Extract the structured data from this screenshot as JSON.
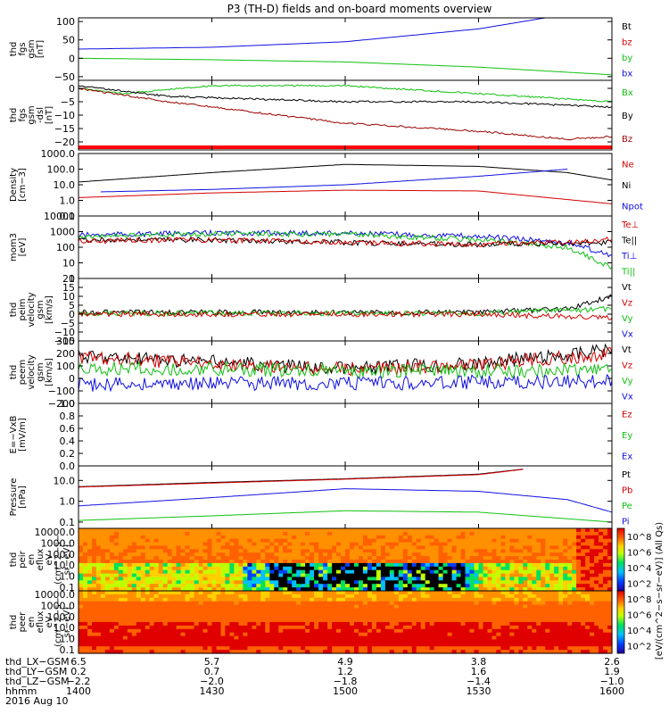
{
  "title": "P3 (TH-D) fields and on-board moments overview",
  "colors": {
    "black": "#000000",
    "red": "#d40000",
    "green": "#10c010",
    "blue": "#1010e0",
    "darkred": "#9b0000"
  },
  "chart_data": {
    "type": "line",
    "x_range_hhmm": [
      1400,
      1600
    ],
    "panels": [
      {
        "id": "fgs_gsm",
        "ylabel": [
          "thd",
          "fgs",
          "gsm",
          "[nT]"
        ],
        "scale": "linear",
        "ylim": [
          -60,
          110
        ],
        "ticks": [
          {
            "v": 100,
            "l": "100"
          },
          {
            "v": 50,
            "l": "50"
          },
          {
            "v": 0,
            "l": "0"
          },
          {
            "v": -50,
            "l": "−50"
          }
        ],
        "legend": [
          {
            "text": "Bt",
            "color": "black"
          },
          {
            "text": "bz",
            "color": "red"
          },
          {
            "text": "by",
            "color": "green"
          },
          {
            "text": "bx",
            "color": "blue"
          }
        ],
        "series": [
          {
            "name": "bx",
            "color": "blue",
            "x": [
              1400,
              1430,
              1500,
              1530,
              1545
            ],
            "y": [
              25,
              30,
              45,
              80,
              110
            ]
          },
          {
            "name": "by",
            "color": "green",
            "x": [
              1400,
              1430,
              1500,
              1530,
              1600
            ],
            "y": [
              0,
              -4,
              -10,
              -24,
              -45
            ]
          }
        ]
      },
      {
        "id": "fgs_gsm_dsl",
        "ylabel": [
          "thd",
          "fgs",
          "gsm",
          "-dsl",
          "[nT]"
        ],
        "scale": "linear",
        "ylim": [
          -23,
          3
        ],
        "ticks": [
          {
            "v": 0,
            "l": "0"
          },
          {
            "v": -5,
            "l": "−5"
          },
          {
            "v": -10,
            "l": "−10"
          },
          {
            "v": -15,
            "l": "−15"
          },
          {
            "v": -20,
            "l": "−20"
          }
        ],
        "legend": [
          {
            "text": "Bx",
            "color": "green"
          },
          {
            "text": "By",
            "color": "black"
          },
          {
            "text": "Bz",
            "color": "darkred"
          }
        ],
        "series": [
          {
            "name": "Bx",
            "color": "green",
            "x": [
              1400,
              1410,
              1430,
              1500,
              1530,
              1600
            ],
            "y": [
              0,
              -2,
              1,
              1,
              -2,
              -5
            ]
          },
          {
            "name": "By",
            "color": "black",
            "x": [
              1400,
              1420,
              1440,
              1500,
              1530,
              1600
            ],
            "y": [
              1,
              -3,
              -4,
              -5,
              -5,
              -7
            ]
          },
          {
            "name": "Bz",
            "color": "darkred",
            "x": [
              1400,
              1420,
              1440,
              1500,
              1530,
              1550,
              1600
            ],
            "y": [
              0,
              -5,
              -9,
              -13,
              -16,
              -19,
              -18
            ]
          }
        ]
      },
      {
        "id": "density",
        "ylabel": [
          "Density",
          "[cm−3]"
        ],
        "scale": "log",
        "ylim": [
          0.1,
          1000
        ],
        "ticks": [
          {
            "v": 1000,
            "l": "1000.0"
          },
          {
            "v": 100,
            "l": "100.0"
          },
          {
            "v": 10,
            "l": "10.0"
          },
          {
            "v": 1,
            "l": "1.0"
          },
          {
            "v": 0.1,
            "l": "0.1"
          }
        ],
        "legend": [
          {
            "text": "Ne",
            "color": "red"
          },
          {
            "text": "Ni",
            "color": "black"
          },
          {
            "text": "Npot",
            "color": "blue"
          }
        ],
        "series": [
          {
            "name": "Ni",
            "color": "black",
            "x": [
              1400,
              1430,
              1500,
              1530,
              1550,
              1600
            ],
            "y": [
              15,
              60,
              200,
              150,
              60,
              20
            ]
          },
          {
            "name": "Npot",
            "color": "blue",
            "x": [
              1405,
              1430,
              1500,
              1530,
              1550
            ],
            "y": [
              3.5,
              5,
              10,
              35,
              100
            ]
          },
          {
            "name": "Ne",
            "color": "red",
            "x": [
              1400,
              1430,
              1500,
              1530,
              1600
            ],
            "y": [
              1.5,
              3,
              4.5,
              4,
              0.6
            ]
          }
        ]
      },
      {
        "id": "temperature",
        "ylabel": [
          "mom3",
          "[eV]"
        ],
        "scale": "log",
        "ylim": [
          1,
          10000
        ],
        "ticks": [
          {
            "v": 10000,
            "l": "10000"
          },
          {
            "v": 1000,
            "l": "1000"
          },
          {
            "v": 100,
            "l": "100"
          },
          {
            "v": 10,
            "l": "10"
          },
          {
            "v": 1,
            "l": "1"
          }
        ],
        "legend": [
          {
            "text": "Te⊥",
            "color": "red"
          },
          {
            "text": "Te||",
            "color": "black"
          },
          {
            "text": "Ti⊥",
            "color": "blue"
          },
          {
            "text": "Ti||",
            "color": "green"
          }
        ],
        "series": [
          {
            "name": "Ti⊥",
            "color": "blue",
            "x": [
              1400,
              1430,
              1500,
              1530,
              1550,
              1600
            ],
            "y": [
              600,
              800,
              800,
              500,
              200,
              30
            ]
          },
          {
            "name": "Ti||",
            "color": "green",
            "x": [
              1400,
              1430,
              1500,
              1530,
              1550,
              1600
            ],
            "y": [
              500,
              700,
              700,
              300,
              100,
              5
            ]
          },
          {
            "name": "Te||",
            "color": "black",
            "x": [
              1400,
              1430,
              1500,
              1530,
              1600
            ],
            "y": [
              300,
              300,
              200,
              150,
              200
            ]
          },
          {
            "name": "Te⊥",
            "color": "red",
            "x": [
              1400,
              1430,
              1500,
              1530,
              1600
            ],
            "y": [
              250,
              300,
              200,
              150,
              300
            ]
          }
        ]
      },
      {
        "id": "peim_velocity",
        "ylabel": [
          "thd",
          "peim",
          "velocity",
          "gsm",
          "[km/s]"
        ],
        "scale": "linear",
        "ylim": [
          -15,
          20
        ],
        "ticks": [
          {
            "v": 20,
            "l": "20"
          },
          {
            "v": 15,
            "l": "15"
          },
          {
            "v": 10,
            "l": "10"
          },
          {
            "v": 5,
            "l": "5"
          },
          {
            "v": 0,
            "l": "0"
          },
          {
            "v": -5,
            "l": "−5"
          },
          {
            "v": -10,
            "l": "−10"
          },
          {
            "v": -15,
            "l": "−15"
          }
        ],
        "legend": [
          {
            "text": "Vt",
            "color": "black"
          },
          {
            "text": "Vz",
            "color": "red"
          },
          {
            "text": "Vy",
            "color": "green"
          },
          {
            "text": "Vx",
            "color": "blue"
          }
        ],
        "series": [
          {
            "name": "Vt",
            "color": "black",
            "x": [
              1400,
              1530,
              1550,
              1600
            ],
            "y": [
              1,
              1,
              3,
              10
            ]
          },
          {
            "name": "Vy",
            "color": "green",
            "x": [
              1400,
              1530,
              1600
            ],
            "y": [
              0.5,
              0.5,
              3
            ]
          },
          {
            "name": "Vz",
            "color": "red",
            "x": [
              1400,
              1530,
              1600
            ],
            "y": [
              0,
              0,
              -2
            ]
          }
        ]
      },
      {
        "id": "peem_velocity",
        "ylabel": [
          "thd",
          "peem",
          "velocity",
          "gsm",
          "[km/s]"
        ],
        "scale": "linear",
        "ylim": [
          -200,
          300
        ],
        "ticks": [
          {
            "v": 300,
            "l": "300"
          },
          {
            "v": 200,
            "l": "200"
          },
          {
            "v": 100,
            "l": "100"
          },
          {
            "v": 0,
            "l": "0"
          },
          {
            "v": -100,
            "l": "−100"
          },
          {
            "v": -200,
            "l": "−200"
          }
        ],
        "legend": [
          {
            "text": "Vt",
            "color": "black"
          },
          {
            "text": "Vz",
            "color": "red"
          },
          {
            "text": "Vy",
            "color": "green"
          },
          {
            "text": "Vx",
            "color": "blue"
          }
        ],
        "series": [
          {
            "name": "Vt",
            "color": "black",
            "x": [
              1400,
              1430,
              1500,
              1530,
              1600
            ],
            "y": [
              180,
              130,
              80,
              120,
              230
            ]
          },
          {
            "name": "Vz",
            "color": "red",
            "x": [
              1400,
              1430,
              1500,
              1530,
              1600
            ],
            "y": [
              170,
              120,
              75,
              110,
              200
            ]
          },
          {
            "name": "Vy",
            "color": "green",
            "x": [
              1400,
              1430,
              1500,
              1530,
              1600
            ],
            "y": [
              80,
              80,
              60,
              60,
              70
            ]
          },
          {
            "name": "Vx",
            "color": "blue",
            "x": [
              1400,
              1430,
              1500,
              1530,
              1600
            ],
            "y": [
              -50,
              -40,
              -40,
              -30,
              -20
            ]
          }
        ]
      },
      {
        "id": "efield",
        "ylabel": [
          "E=−VxB",
          "[mV/m]"
        ],
        "scale": "linear",
        "ylim": [
          0,
          1
        ],
        "ticks": [
          {
            "v": 1,
            "l": "1.0"
          },
          {
            "v": 0.8,
            "l": "0.8"
          },
          {
            "v": 0.6,
            "l": "0.6"
          },
          {
            "v": 0.4,
            "l": "0.4"
          },
          {
            "v": 0.2,
            "l": "0.2"
          },
          {
            "v": 0,
            "l": "0.0"
          }
        ],
        "legend": [
          {
            "text": "Ez",
            "color": "red"
          },
          {
            "text": "Ey",
            "color": "green"
          },
          {
            "text": "Ex",
            "color": "blue"
          }
        ],
        "series": []
      },
      {
        "id": "pressure",
        "ylabel": [
          "Pressure",
          "[nPa]"
        ],
        "scale": "log",
        "ylim": [
          0.05,
          50
        ],
        "ticks": [
          {
            "v": 10,
            "l": "10.0"
          },
          {
            "v": 1,
            "l": "1.0"
          },
          {
            "v": 0.1,
            "l": "0.1"
          }
        ],
        "legend": [
          {
            "text": "Pt",
            "color": "black"
          },
          {
            "text": "Pb",
            "color": "red"
          },
          {
            "text": "Pe",
            "color": "green"
          },
          {
            "text": "Pi",
            "color": "blue"
          }
        ],
        "series": [
          {
            "name": "Pt",
            "color": "black",
            "x": [
              1400,
              1430,
              1500,
              1530,
              1540
            ],
            "y": [
              5,
              8,
              12,
              20,
              35
            ]
          },
          {
            "name": "Pb",
            "color": "red",
            "x": [
              1400,
              1430,
              1500,
              1530,
              1540
            ],
            "y": [
              4.8,
              7.5,
              11.5,
              19,
              34
            ]
          },
          {
            "name": "Pi",
            "color": "blue",
            "x": [
              1400,
              1430,
              1500,
              1530,
              1550,
              1600
            ],
            "y": [
              0.6,
              1.5,
              4,
              3,
              1.2,
              0.3
            ]
          },
          {
            "name": "Pe",
            "color": "green",
            "x": [
              1400,
              1430,
              1500,
              1530,
              1600
            ],
            "y": [
              0.12,
              0.2,
              0.35,
              0.3,
              0.1
            ]
          }
        ]
      },
      {
        "id": "peir_spectrogram",
        "type": "heatmap",
        "ylabel": [
          "thd",
          "peir",
          "en",
          "eflux",
          "eV",
          "(cm^2−s−",
          "sr−eV)"
        ],
        "scale": "log",
        "ylim": [
          0.05,
          20000
        ],
        "ticks": [
          {
            "v": 10000,
            "l": "10000.0"
          },
          {
            "v": 1000,
            "l": "1000.0"
          },
          {
            "v": 100,
            "l": "100.0"
          },
          {
            "v": 10,
            "l": "10.0"
          },
          {
            "v": 1,
            "l": "1.0"
          },
          {
            "v": 0.1,
            "l": "0.1"
          }
        ]
      },
      {
        "id": "peer_spectrogram",
        "type": "heatmap",
        "ylabel": [
          "thd",
          "peer",
          "en",
          "eflux",
          "eV",
          "(cm^2−s−",
          "sr−eV)"
        ],
        "scale": "log",
        "ylim": [
          0.05,
          20000
        ],
        "ticks": [
          {
            "v": 10000,
            "l": "10000.0"
          },
          {
            "v": 1000,
            "l": "1000.0"
          },
          {
            "v": 100,
            "l": "100.0"
          },
          {
            "v": 10,
            "l": "10.0"
          },
          {
            "v": 1,
            "l": "1.0"
          },
          {
            "v": 0.1,
            "l": "0.1"
          }
        ]
      }
    ],
    "colorbar": {
      "ticks": [
        {
          "v": 8,
          "l": "10^8"
        },
        {
          "v": 6,
          "l": "10^6"
        },
        {
          "v": 4,
          "l": "10^4"
        },
        {
          "v": 2,
          "l": "10^2"
        }
      ],
      "ticks_lower": [
        {
          "v": 8,
          "l": "10^8"
        },
        {
          "v": 6,
          "l": "10^6"
        },
        {
          "v": 4,
          "l": "10^4"
        },
        {
          "v": 2,
          "l": "10^2"
        }
      ],
      "label": "[eV/(cm^2−s−sr−eV)] (All Qs)"
    },
    "xaxis": {
      "rows": [
        {
          "label": "thd_LX−GSM",
          "values": [
            "6.5",
            "5.7",
            "4.9",
            "3.8",
            "2.6"
          ]
        },
        {
          "label": "thd_LY−GSM",
          "values": [
            "0.2",
            "0.7",
            "1.2",
            "1.6",
            "1.9"
          ]
        },
        {
          "label": "thd_LZ−GSM",
          "values": [
            "−2.2",
            "−2.0",
            "−1.8",
            "−1.4",
            "−1.0"
          ]
        },
        {
          "label": "hhmm",
          "values": [
            "1400",
            "1430",
            "1500",
            "1530",
            "1600"
          ]
        }
      ],
      "tick_times": [
        1400,
        1430,
        1500,
        1530,
        1600
      ],
      "date": "2016 Aug 10"
    }
  }
}
